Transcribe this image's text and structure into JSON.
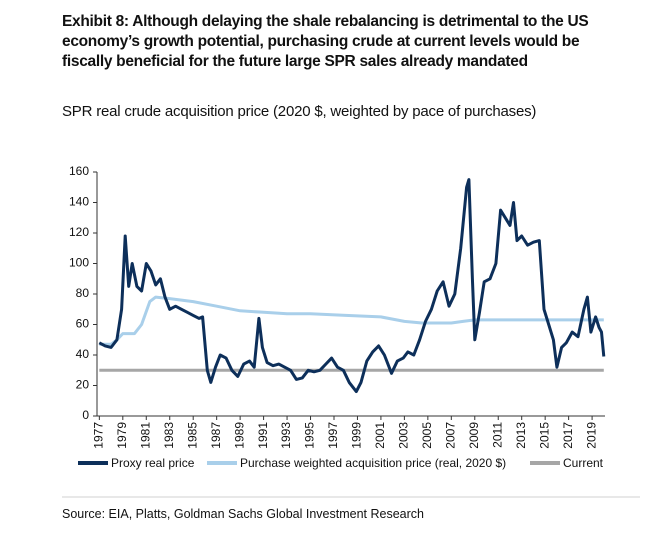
{
  "chart_data": {
    "type": "line",
    "title": "Exhibit 8: Although delaying the shale rebalancing is detrimental to the US economy’s growth potential, purchasing crude at current levels would be fiscally beneficial for the future large SPR sales already mandated",
    "subtitle": "SPR real crude acquisition price (2020 $, weighted by pace of purchases)",
    "source": "Source: EIA, Platts, Goldman Sachs Global Investment Research",
    "xlim": [
      1976.8,
      2020.1
    ],
    "xticks": [
      1977,
      1979,
      1981,
      1983,
      1985,
      1987,
      1989,
      1991,
      1993,
      1995,
      1997,
      1999,
      2001,
      2003,
      2005,
      2007,
      2009,
      2011,
      2013,
      2015,
      2017,
      2019
    ],
    "ylim": [
      0,
      160
    ],
    "yticks": [
      0,
      20,
      40,
      60,
      80,
      100,
      120,
      140,
      160
    ],
    "series": [
      {
        "name": "Proxy real price",
        "color": "#0d2f5a",
        "x": [
          1977.0,
          1977.5,
          1978.0,
          1978.5,
          1978.9,
          1979.2,
          1979.5,
          1979.8,
          1980.2,
          1980.6,
          1981.0,
          1981.4,
          1981.8,
          1982.2,
          1982.6,
          1983.0,
          1983.5,
          1984.0,
          1984.5,
          1985.0,
          1985.5,
          1985.8,
          1986.2,
          1986.5,
          1986.9,
          1987.3,
          1987.8,
          1988.3,
          1988.8,
          1989.3,
          1989.8,
          1990.2,
          1990.6,
          1990.9,
          1991.3,
          1991.8,
          1992.3,
          1992.8,
          1993.3,
          1993.8,
          1994.3,
          1994.8,
          1995.3,
          1995.8,
          1996.3,
          1996.8,
          1997.3,
          1997.8,
          1998.3,
          1998.9,
          1999.3,
          1999.8,
          2000.3,
          2000.8,
          2001.3,
          2001.9,
          2002.4,
          2002.9,
          2003.3,
          2003.8,
          2004.3,
          2004.8,
          2005.3,
          2005.8,
          2006.3,
          2006.8,
          2007.3,
          2007.8,
          2008.3,
          2008.5,
          2008.8,
          2009.0,
          2009.4,
          2009.8,
          2010.3,
          2010.8,
          2011.2,
          2011.6,
          2012.0,
          2012.3,
          2012.6,
          2013.0,
          2013.5,
          2014.0,
          2014.5,
          2014.9,
          2015.3,
          2015.7,
          2016.0,
          2016.4,
          2016.8,
          2017.3,
          2017.8,
          2018.3,
          2018.6,
          2018.9,
          2019.3,
          2019.6,
          2019.8,
          2020.0
        ],
        "values": [
          48,
          46,
          45,
          50,
          70,
          118,
          85,
          100,
          85,
          82,
          100,
          95,
          86,
          90,
          78,
          70,
          72,
          70,
          68,
          66,
          64,
          65,
          30,
          22,
          32,
          40,
          38,
          30,
          26,
          34,
          36,
          32,
          64,
          45,
          35,
          33,
          34,
          32,
          30,
          24,
          25,
          30,
          29,
          30,
          34,
          38,
          32,
          30,
          22,
          16,
          22,
          36,
          42,
          46,
          40,
          28,
          36,
          38,
          42,
          40,
          50,
          62,
          70,
          82,
          88,
          72,
          80,
          110,
          150,
          155,
          90,
          50,
          68,
          88,
          90,
          100,
          135,
          130,
          125,
          140,
          115,
          118,
          112,
          114,
          115,
          70,
          60,
          50,
          32,
          45,
          48,
          55,
          52,
          70,
          78,
          55,
          65,
          58,
          55,
          39
        ]
      },
      {
        "name": "Purchase weighted acquisition price (real, 2020 $)",
        "color": "#a9cfea",
        "x": [
          1977.0,
          1978.0,
          1978.5,
          1979.0,
          1980.0,
          1980.6,
          1981.3,
          1981.8,
          1983.0,
          1985.0,
          1987.0,
          1989.0,
          1991.0,
          1993.0,
          1995.0,
          1998.0,
          2001.0,
          2003.0,
          2004.5,
          2007.0,
          2008.0,
          2009.0,
          2020.0
        ],
        "values": [
          47,
          47,
          50,
          54,
          54,
          60,
          75,
          78,
          77,
          75,
          72,
          69,
          68,
          67,
          67,
          66,
          65,
          62,
          61,
          61,
          62,
          63,
          63
        ]
      },
      {
        "name": "Current",
        "color": "#a6a6a6",
        "x": [
          1977.0,
          2020.0
        ],
        "values": [
          30,
          30
        ]
      }
    ]
  }
}
